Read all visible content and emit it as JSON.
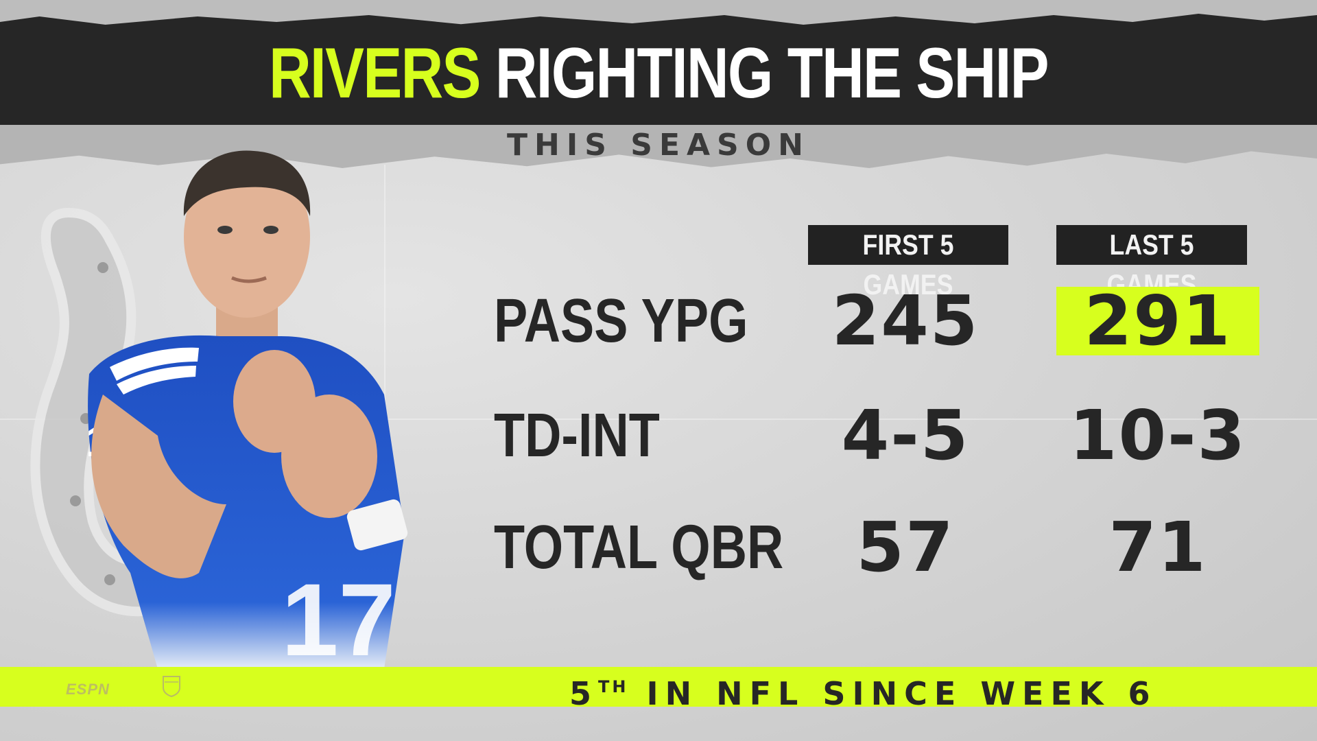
{
  "header": {
    "title_accent": "RIVERS",
    "title_rest": "RIGHTING THE SHIP",
    "subtitle": "THIS SEASON"
  },
  "colors": {
    "accent": "#d7ff1e",
    "dark": "#262626",
    "background": "#d6d6d6"
  },
  "columns": [
    "FIRST 5 GAMES",
    "LAST 5 GAMES"
  ],
  "rows": [
    {
      "label": "PASS YPG",
      "first": "245",
      "last": "291",
      "highlight_last": true
    },
    {
      "label": "TD-INT",
      "first": "4-5",
      "last": "10-3",
      "highlight_last": false
    },
    {
      "label": "TOTAL QBR",
      "first": "57",
      "last": "71",
      "highlight_last": false
    }
  ],
  "footer": {
    "ordinal_num": "5",
    "ordinal_suffix": "TH",
    "text": "IN NFL SINCE WEEK 6"
  },
  "branding": {
    "espn": "ESPN",
    "nfl_logo": "nfl-shield-icon",
    "team_logo": "horseshoe-icon"
  },
  "player": {
    "jersey_number": "17"
  }
}
